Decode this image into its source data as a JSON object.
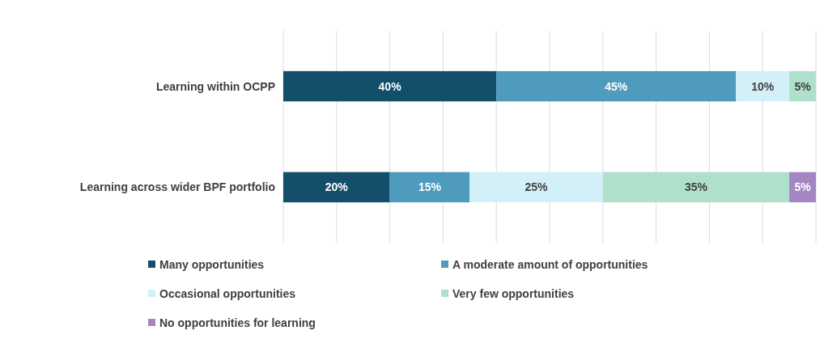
{
  "chart_data": {
    "type": "bar",
    "orientation": "horizontal",
    "stacked": true,
    "categories": [
      "Learning within OCPP",
      "Learning across wider BPF portfolio"
    ],
    "series": [
      {
        "name": "Many opportunities",
        "color": "#134f6b",
        "values": [
          40,
          20
        ],
        "value_labels": [
          "40%",
          "20%"
        ]
      },
      {
        "name": "A moderate amount of opportunities",
        "color": "#4f9bbd",
        "values": [
          45,
          15
        ],
        "value_labels": [
          "45%",
          "15%"
        ]
      },
      {
        "name": "Occasional opportunities",
        "color": "#d3eff8",
        "values": [
          10,
          25
        ],
        "value_labels": [
          "10%",
          "25%"
        ]
      },
      {
        "name": "Very few opportunities",
        "color": "#aee0cb",
        "values": [
          5,
          35
        ],
        "value_labels": [
          "5%",
          "35%"
        ]
      },
      {
        "name": "No opportunities for learning",
        "color": "#a487c2",
        "values": [
          0,
          5
        ],
        "value_labels": [
          null,
          "5%"
        ]
      }
    ],
    "xlim": [
      0,
      100
    ],
    "xticks": [
      {
        "value": 0,
        "label": null
      },
      {
        "value": 10,
        "label": null
      },
      {
        "value": 20,
        "label": null
      },
      {
        "value": 30,
        "label": null
      },
      {
        "value": 40,
        "label": null
      },
      {
        "value": 50,
        "label": null
      },
      {
        "value": 60,
        "label": null
      },
      {
        "value": 70,
        "label": null
      },
      {
        "value": 80,
        "label": null
      },
      {
        "value": 90,
        "label": null
      },
      {
        "value": 100,
        "label": null
      }
    ],
    "tick_labels": "y",
    "grid": "x",
    "legend": "bottom"
  }
}
